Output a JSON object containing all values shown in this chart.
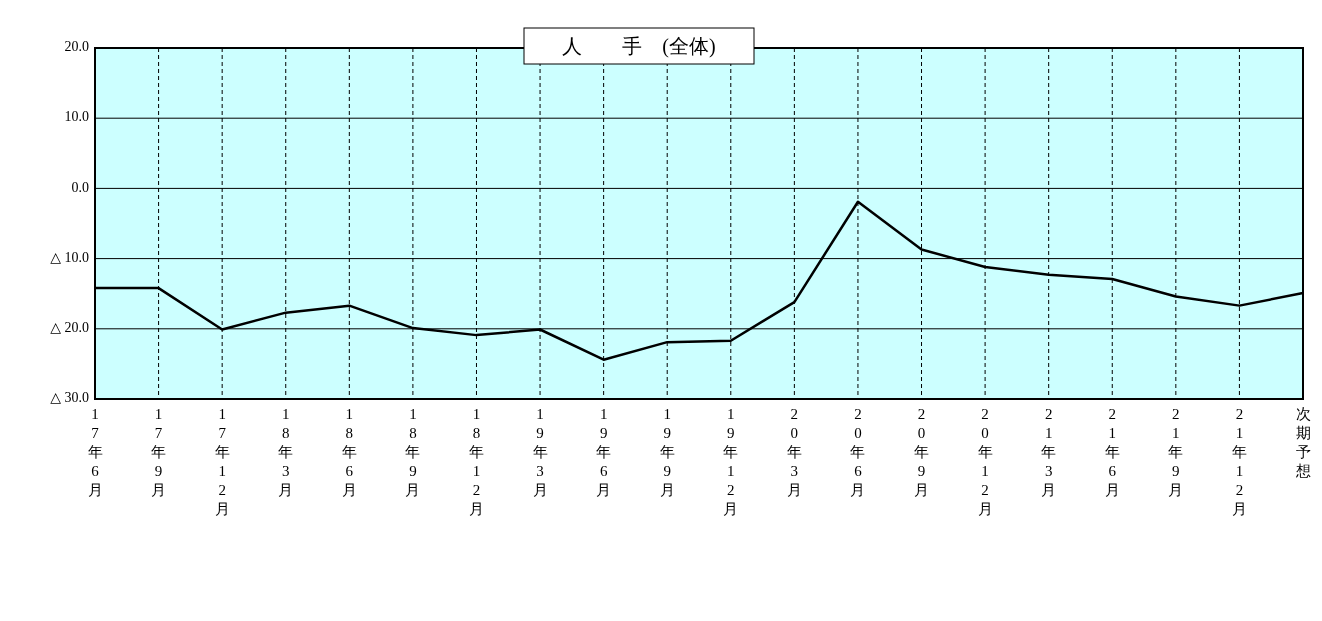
{
  "chart_data": {
    "type": "line",
    "title": "人　　手　(全体)",
    "categories": [
      "17年6月",
      "17年9月",
      "17年12月",
      "18年3月",
      "18年6月",
      "18年9月",
      "18年12月",
      "19年3月",
      "19年6月",
      "19年9月",
      "19年12月",
      "20年3月",
      "20年6月",
      "20年9月",
      "20年12月",
      "21年3月",
      "21年6月",
      "21年9月",
      "21年12月",
      "次期予想"
    ],
    "series": [
      {
        "color": "#000000",
        "values": [
          -14.2,
          -14.2,
          -20.1,
          -17.7,
          -16.7,
          -19.9,
          -20.9,
          -20.1,
          -24.4,
          -21.9,
          -21.7,
          -16.2,
          -1.9,
          -8.7,
          -11.2,
          -12.3,
          -12.9,
          -15.4,
          -16.7,
          -14.9
        ]
      }
    ],
    "ylim": [
      -30,
      20
    ],
    "yticks": [
      {
        "value": 20,
        "label": "20.0"
      },
      {
        "value": 10,
        "label": "10.0"
      },
      {
        "value": 0,
        "label": "0.0"
      },
      {
        "value": -10,
        "label": "△ 10.0"
      },
      {
        "value": -20,
        "label": "△ 20.0"
      },
      {
        "value": -30,
        "label": "△ 30.0"
      }
    ],
    "grid": true,
    "marker": "none",
    "line_style": "solid"
  }
}
